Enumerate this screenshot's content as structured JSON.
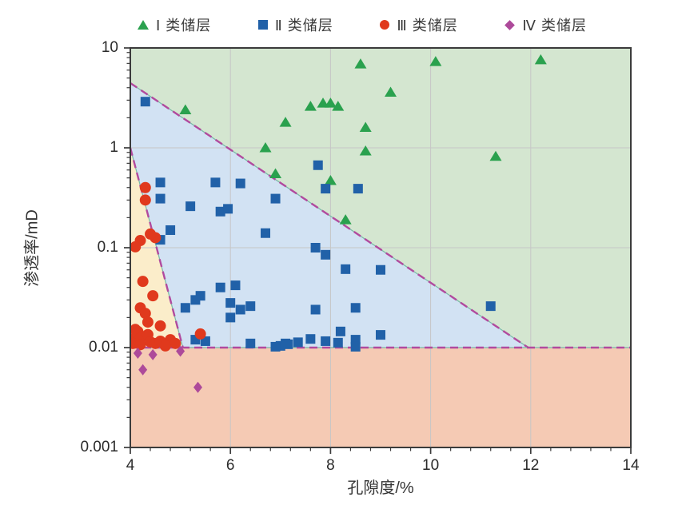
{
  "chart_data": {
    "type": "scatter",
    "title": "",
    "x_axis": {
      "label": "孔隙度/%",
      "min": 4,
      "max": 14,
      "major_ticks": [
        4,
        6,
        8,
        10,
        12,
        14
      ],
      "minor_step": 0.4
    },
    "y_axis": {
      "label": "渗透率/mD",
      "scale": "log",
      "min": 0.001,
      "max": 10,
      "major_ticks": [
        0.001,
        0.01,
        0.1,
        1,
        10
      ],
      "tick_labels": [
        "0.001",
        "0.01",
        "0.1",
        "1",
        "10"
      ]
    },
    "grid": true,
    "legend_position": "top",
    "zones": [
      {
        "name": "zone-I-background",
        "color": "#d4e6d0",
        "polygon": [
          [
            4,
            10
          ],
          [
            14,
            10
          ],
          [
            14,
            0.01
          ],
          [
            11.95,
            0.01
          ],
          [
            4,
            4.45
          ]
        ]
      },
      {
        "name": "zone-II-background",
        "color": "#d2e2f3",
        "polygon": [
          [
            4,
            4.45
          ],
          [
            11.95,
            0.01
          ],
          [
            4,
            0.01
          ]
        ]
      },
      {
        "name": "zone-III-background",
        "color": "#fbedca",
        "polygon": [
          [
            4,
            1.0
          ],
          [
            5.05,
            0.01
          ],
          [
            4,
            0.01
          ]
        ]
      },
      {
        "name": "zone-IV-background",
        "color": "#f5cab4",
        "polygon": [
          [
            4,
            0.01
          ],
          [
            14,
            0.01
          ],
          [
            14,
            0.001
          ],
          [
            4,
            0.001
          ]
        ]
      }
    ],
    "boundaries": {
      "color": "#b14a9e",
      "underlay_color": "#79b9a6",
      "lines": [
        {
          "name": "upper-boundary",
          "from": [
            4,
            4.45
          ],
          "to": [
            11.95,
            0.01
          ]
        },
        {
          "name": "left-boundary",
          "from": [
            4,
            1.0
          ],
          "to": [
            5.05,
            0.01
          ]
        },
        {
          "name": "horizontal-boundary",
          "from": [
            4,
            0.01
          ],
          "to": [
            14,
            0.01
          ]
        }
      ]
    },
    "series": [
      {
        "name": "Ⅰ 类储层",
        "marker": "triangle",
        "color": "#2aa14e",
        "points": [
          [
            5.1,
            2.4
          ],
          [
            6.7,
            1.0
          ],
          [
            6.9,
            0.55
          ],
          [
            7.1,
            1.8
          ],
          [
            7.6,
            2.6
          ],
          [
            7.85,
            2.8
          ],
          [
            8.0,
            2.8
          ],
          [
            8.15,
            2.6
          ],
          [
            8.0,
            0.47
          ],
          [
            8.3,
            0.19
          ],
          [
            8.6,
            6.9
          ],
          [
            8.7,
            1.6
          ],
          [
            8.7,
            0.93
          ],
          [
            9.2,
            3.6
          ],
          [
            10.1,
            7.3
          ],
          [
            11.3,
            0.82
          ],
          [
            12.2,
            7.6
          ]
        ]
      },
      {
        "name": "Ⅱ 类储层",
        "marker": "square",
        "color": "#2161a8",
        "points": [
          [
            4.3,
            2.9
          ],
          [
            4.6,
            0.45
          ],
          [
            5.7,
            0.45
          ],
          [
            6.2,
            0.44
          ],
          [
            6.9,
            0.31
          ],
          [
            7.75,
            0.67
          ],
          [
            7.9,
            0.39
          ],
          [
            8.55,
            0.39
          ],
          [
            4.6,
            0.31
          ],
          [
            5.2,
            0.26
          ],
          [
            5.8,
            0.23
          ],
          [
            5.95,
            0.245
          ],
          [
            4.8,
            0.15
          ],
          [
            6.7,
            0.14
          ],
          [
            4.6,
            0.12
          ],
          [
            7.7,
            0.1
          ],
          [
            7.9,
            0.085
          ],
          [
            8.3,
            0.061
          ],
          [
            9.0,
            0.06
          ],
          [
            6.1,
            0.042
          ],
          [
            5.8,
            0.04
          ],
          [
            5.4,
            0.033
          ],
          [
            5.3,
            0.03
          ],
          [
            6.0,
            0.028
          ],
          [
            6.4,
            0.026
          ],
          [
            5.1,
            0.025
          ],
          [
            6.2,
            0.024
          ],
          [
            7.7,
            0.024
          ],
          [
            8.5,
            0.025
          ],
          [
            6.0,
            0.02
          ],
          [
            8.2,
            0.0145
          ],
          [
            9.0,
            0.0134
          ],
          [
            5.3,
            0.012
          ],
          [
            8.5,
            0.012
          ],
          [
            7.6,
            0.0122
          ],
          [
            5.5,
            0.0116
          ],
          [
            7.9,
            0.0116
          ],
          [
            7.35,
            0.0113
          ],
          [
            8.15,
            0.0112
          ],
          [
            6.4,
            0.011
          ],
          [
            7.1,
            0.011
          ],
          [
            7.15,
            0.0108
          ],
          [
            7.0,
            0.0104
          ],
          [
            6.9,
            0.0102
          ],
          [
            8.5,
            0.0102
          ],
          [
            11.2,
            0.026
          ]
        ]
      },
      {
        "name": "Ⅲ 类储层",
        "marker": "circle",
        "color": "#e0391d",
        "points": [
          [
            4.3,
            0.4
          ],
          [
            4.3,
            0.3
          ],
          [
            4.5,
            0.126
          ],
          [
            4.4,
            0.137
          ],
          [
            4.2,
            0.118
          ],
          [
            4.1,
            0.102
          ],
          [
            4.25,
            0.046
          ],
          [
            4.45,
            0.033
          ],
          [
            4.2,
            0.025
          ],
          [
            4.3,
            0.022
          ],
          [
            4.35,
            0.018
          ],
          [
            4.6,
            0.0165
          ],
          [
            5.4,
            0.0137
          ],
          [
            4.1,
            0.0152
          ],
          [
            4.15,
            0.0145
          ],
          [
            4.1,
            0.0127
          ],
          [
            4.2,
            0.0125
          ],
          [
            4.35,
            0.0135
          ],
          [
            4.05,
            0.011
          ],
          [
            4.2,
            0.0107
          ],
          [
            4.4,
            0.0114
          ],
          [
            4.5,
            0.011
          ],
          [
            4.6,
            0.0116
          ],
          [
            4.8,
            0.012
          ],
          [
            4.9,
            0.011
          ],
          [
            4.7,
            0.0104
          ]
        ]
      },
      {
        "name": "Ⅳ 类储层",
        "marker": "diamond",
        "color": "#ad4a9a",
        "points": [
          [
            4.15,
            0.0088
          ],
          [
            4.25,
            0.006
          ],
          [
            4.45,
            0.0085
          ],
          [
            5.0,
            0.0092
          ],
          [
            5.35,
            0.004
          ]
        ]
      }
    ]
  }
}
